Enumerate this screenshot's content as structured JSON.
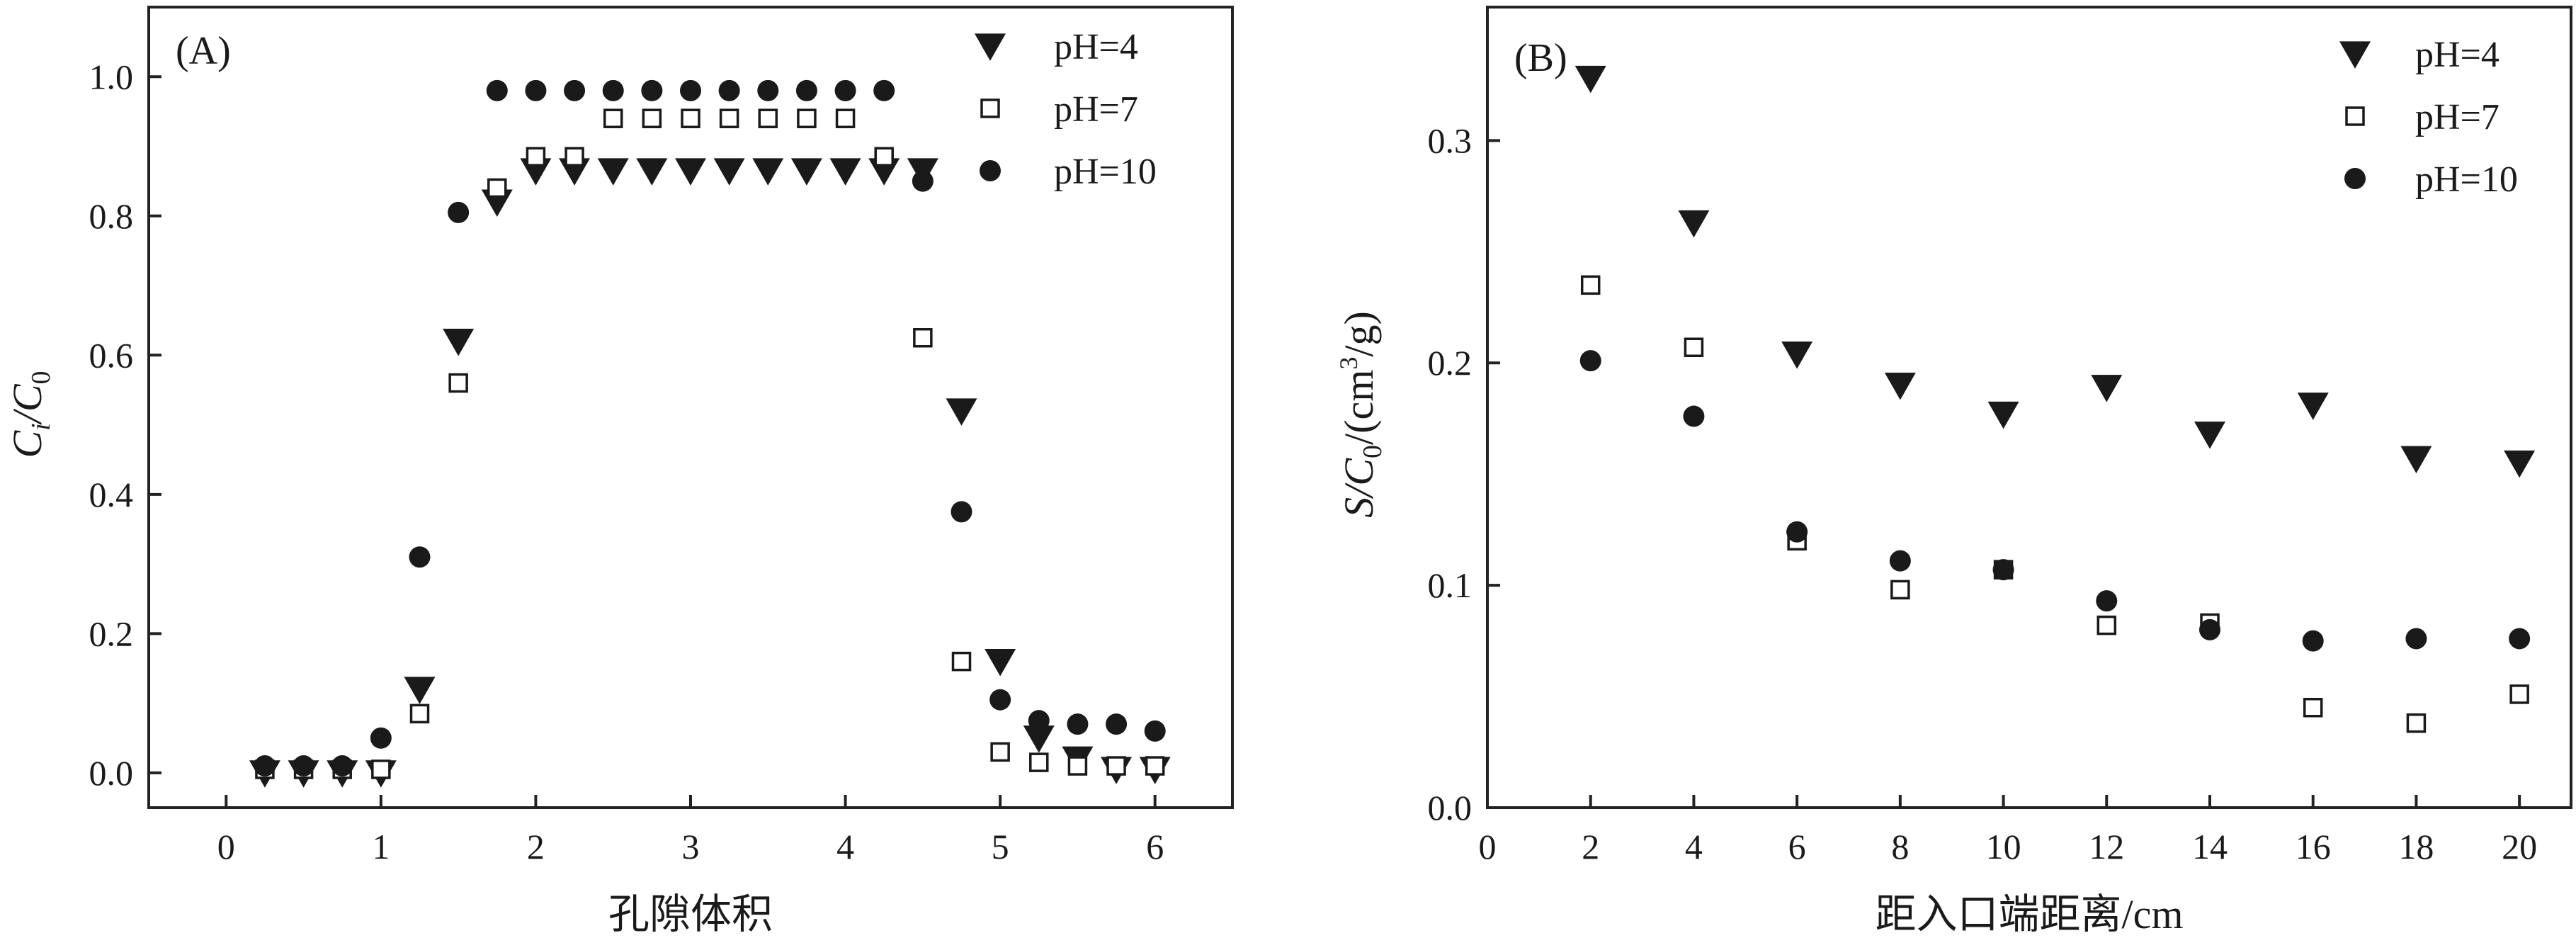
{
  "chart_data": [
    {
      "type": "scatter",
      "panel_label": "(A)",
      "xlabel": "孔隙体积",
      "ylabel": {
        "main": "C",
        "sub1": "i",
        "sep": "/C",
        "sub2": "0"
      },
      "xlim": [
        -0.5,
        6.5
      ],
      "ylim": [
        -0.05,
        1.1
      ],
      "xticks": [
        0,
        1,
        2,
        3,
        4,
        5,
        6
      ],
      "yticks": [
        0.0,
        0.2,
        0.4,
        0.6,
        0.8,
        1.0
      ],
      "xtick_labels": [
        "0",
        "1",
        "2",
        "3",
        "4",
        "5",
        "6"
      ],
      "ytick_labels": [
        "0.0",
        "0.2",
        "0.4",
        "0.6",
        "0.8",
        "1.0"
      ],
      "legend_position": "top-right",
      "series": [
        {
          "name": "pH=4",
          "marker": "triangle-down",
          "x": [
            0.25,
            0.5,
            0.75,
            1.0,
            1.25,
            1.5,
            1.75,
            2.0,
            2.25,
            2.5,
            2.75,
            3.0,
            3.25,
            3.5,
            3.75,
            4.0,
            4.25,
            4.5,
            4.75,
            5.0,
            5.25,
            5.5,
            5.75,
            6.0
          ],
          "y": [
            0.0,
            0.0,
            0.0,
            0.0,
            0.12,
            0.62,
            0.82,
            0.865,
            0.865,
            0.865,
            0.865,
            0.865,
            0.865,
            0.865,
            0.865,
            0.865,
            0.865,
            0.865,
            0.52,
            0.16,
            0.05,
            0.02,
            0.005,
            0.005
          ]
        },
        {
          "name": "pH=7",
          "marker": "square-open",
          "x": [
            0.25,
            0.5,
            0.75,
            1.0,
            1.25,
            1.5,
            1.75,
            2.0,
            2.25,
            2.5,
            2.75,
            3.0,
            3.25,
            3.5,
            3.75,
            4.0,
            4.25,
            4.5,
            4.75,
            5.0,
            5.25,
            5.5,
            5.75,
            6.0
          ],
          "y": [
            0.005,
            0.005,
            0.005,
            0.005,
            0.085,
            0.56,
            0.84,
            0.885,
            0.885,
            0.94,
            0.94,
            0.94,
            0.94,
            0.94,
            0.94,
            0.94,
            0.885,
            0.625,
            0.16,
            0.03,
            0.015,
            0.01,
            0.01,
            0.01
          ]
        },
        {
          "name": "pH=10",
          "marker": "circle",
          "x": [
            0.25,
            0.5,
            0.75,
            1.0,
            1.25,
            1.5,
            1.75,
            2.0,
            2.25,
            2.5,
            2.75,
            3.0,
            3.25,
            3.5,
            3.75,
            4.0,
            4.25,
            4.5,
            4.75,
            5.0,
            5.25,
            5.5,
            5.75,
            6.0
          ],
          "y": [
            0.01,
            0.01,
            0.01,
            0.05,
            0.31,
            0.805,
            0.98,
            0.98,
            0.98,
            0.98,
            0.98,
            0.98,
            0.98,
            0.98,
            0.98,
            0.98,
            0.98,
            0.85,
            0.375,
            0.105,
            0.075,
            0.07,
            0.07,
            0.06
          ]
        }
      ]
    },
    {
      "type": "scatter",
      "panel_label": "(B)",
      "xlabel": "距入口端距离/cm",
      "ylabel": {
        "part1": "S/C",
        "sub": "0",
        "part2": "/(cm",
        "sup": "3",
        "part3": "/g)"
      },
      "xlim": [
        0,
        21
      ],
      "ylim": [
        0.0,
        0.36
      ],
      "xticks": [
        0,
        2,
        4,
        6,
        8,
        10,
        12,
        14,
        16,
        18,
        20
      ],
      "yticks": [
        0.0,
        0.1,
        0.2,
        0.3
      ],
      "xtick_labels": [
        "0",
        "2",
        "4",
        "6",
        "8",
        "10",
        "12",
        "14",
        "16",
        "18",
        "20"
      ],
      "ytick_labels": [
        "0.0",
        "0.1",
        "0.2",
        "0.3"
      ],
      "legend_position": "top-right",
      "series": [
        {
          "name": "pH=4",
          "marker": "triangle-down",
          "x": [
            2,
            4,
            6,
            8,
            10,
            12,
            14,
            16,
            18,
            20
          ],
          "y": [
            0.328,
            0.263,
            0.204,
            0.19,
            0.177,
            0.189,
            0.168,
            0.181,
            0.157,
            0.155
          ]
        },
        {
          "name": "pH=7",
          "marker": "square-open",
          "x": [
            2,
            4,
            6,
            8,
            10,
            12,
            14,
            16,
            18,
            20
          ],
          "y": [
            0.235,
            0.207,
            0.12,
            0.098,
            0.107,
            0.082,
            0.083,
            0.045,
            0.038,
            0.051
          ]
        },
        {
          "name": "pH=10",
          "marker": "circle",
          "x": [
            2,
            4,
            6,
            8,
            10,
            12,
            14,
            16,
            18,
            20
          ],
          "y": [
            0.201,
            0.176,
            0.124,
            0.111,
            0.107,
            0.093,
            0.08,
            0.075,
            0.076,
            0.076
          ]
        }
      ]
    }
  ]
}
